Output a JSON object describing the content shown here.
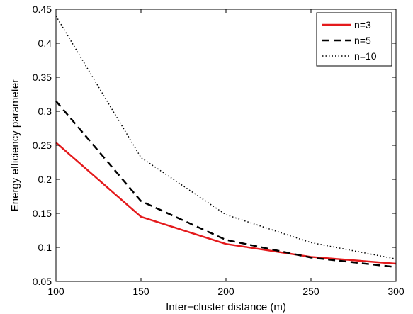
{
  "chart_data": {
    "type": "line",
    "title": "",
    "xlabel": "Inter−cluster distance (m)",
    "ylabel": "Energy efficiency parameter",
    "xlim": [
      100,
      300
    ],
    "ylim": [
      0.05,
      0.45
    ],
    "x": [
      100,
      150,
      200,
      250,
      300
    ],
    "x_ticks": [
      "100",
      "150",
      "200",
      "250",
      "300"
    ],
    "y_ticks": [
      "0.05",
      "0.1",
      "0.15",
      "0.2",
      "0.25",
      "0.3",
      "0.35",
      "0.4",
      "0.45"
    ],
    "grid": false,
    "legend_position": "top-right",
    "series": [
      {
        "name": "n=3",
        "values": [
          0.254,
          0.145,
          0.105,
          0.086,
          0.076
        ],
        "color": "#e41a1c",
        "style": "solid"
      },
      {
        "name": "n=5",
        "values": [
          0.315,
          0.168,
          0.111,
          0.085,
          0.071
        ],
        "color": "#000000",
        "style": "dashed"
      },
      {
        "name": "n=10",
        "values": [
          0.44,
          0.232,
          0.148,
          0.107,
          0.083
        ],
        "color": "#000000",
        "style": "dotted"
      }
    ]
  }
}
